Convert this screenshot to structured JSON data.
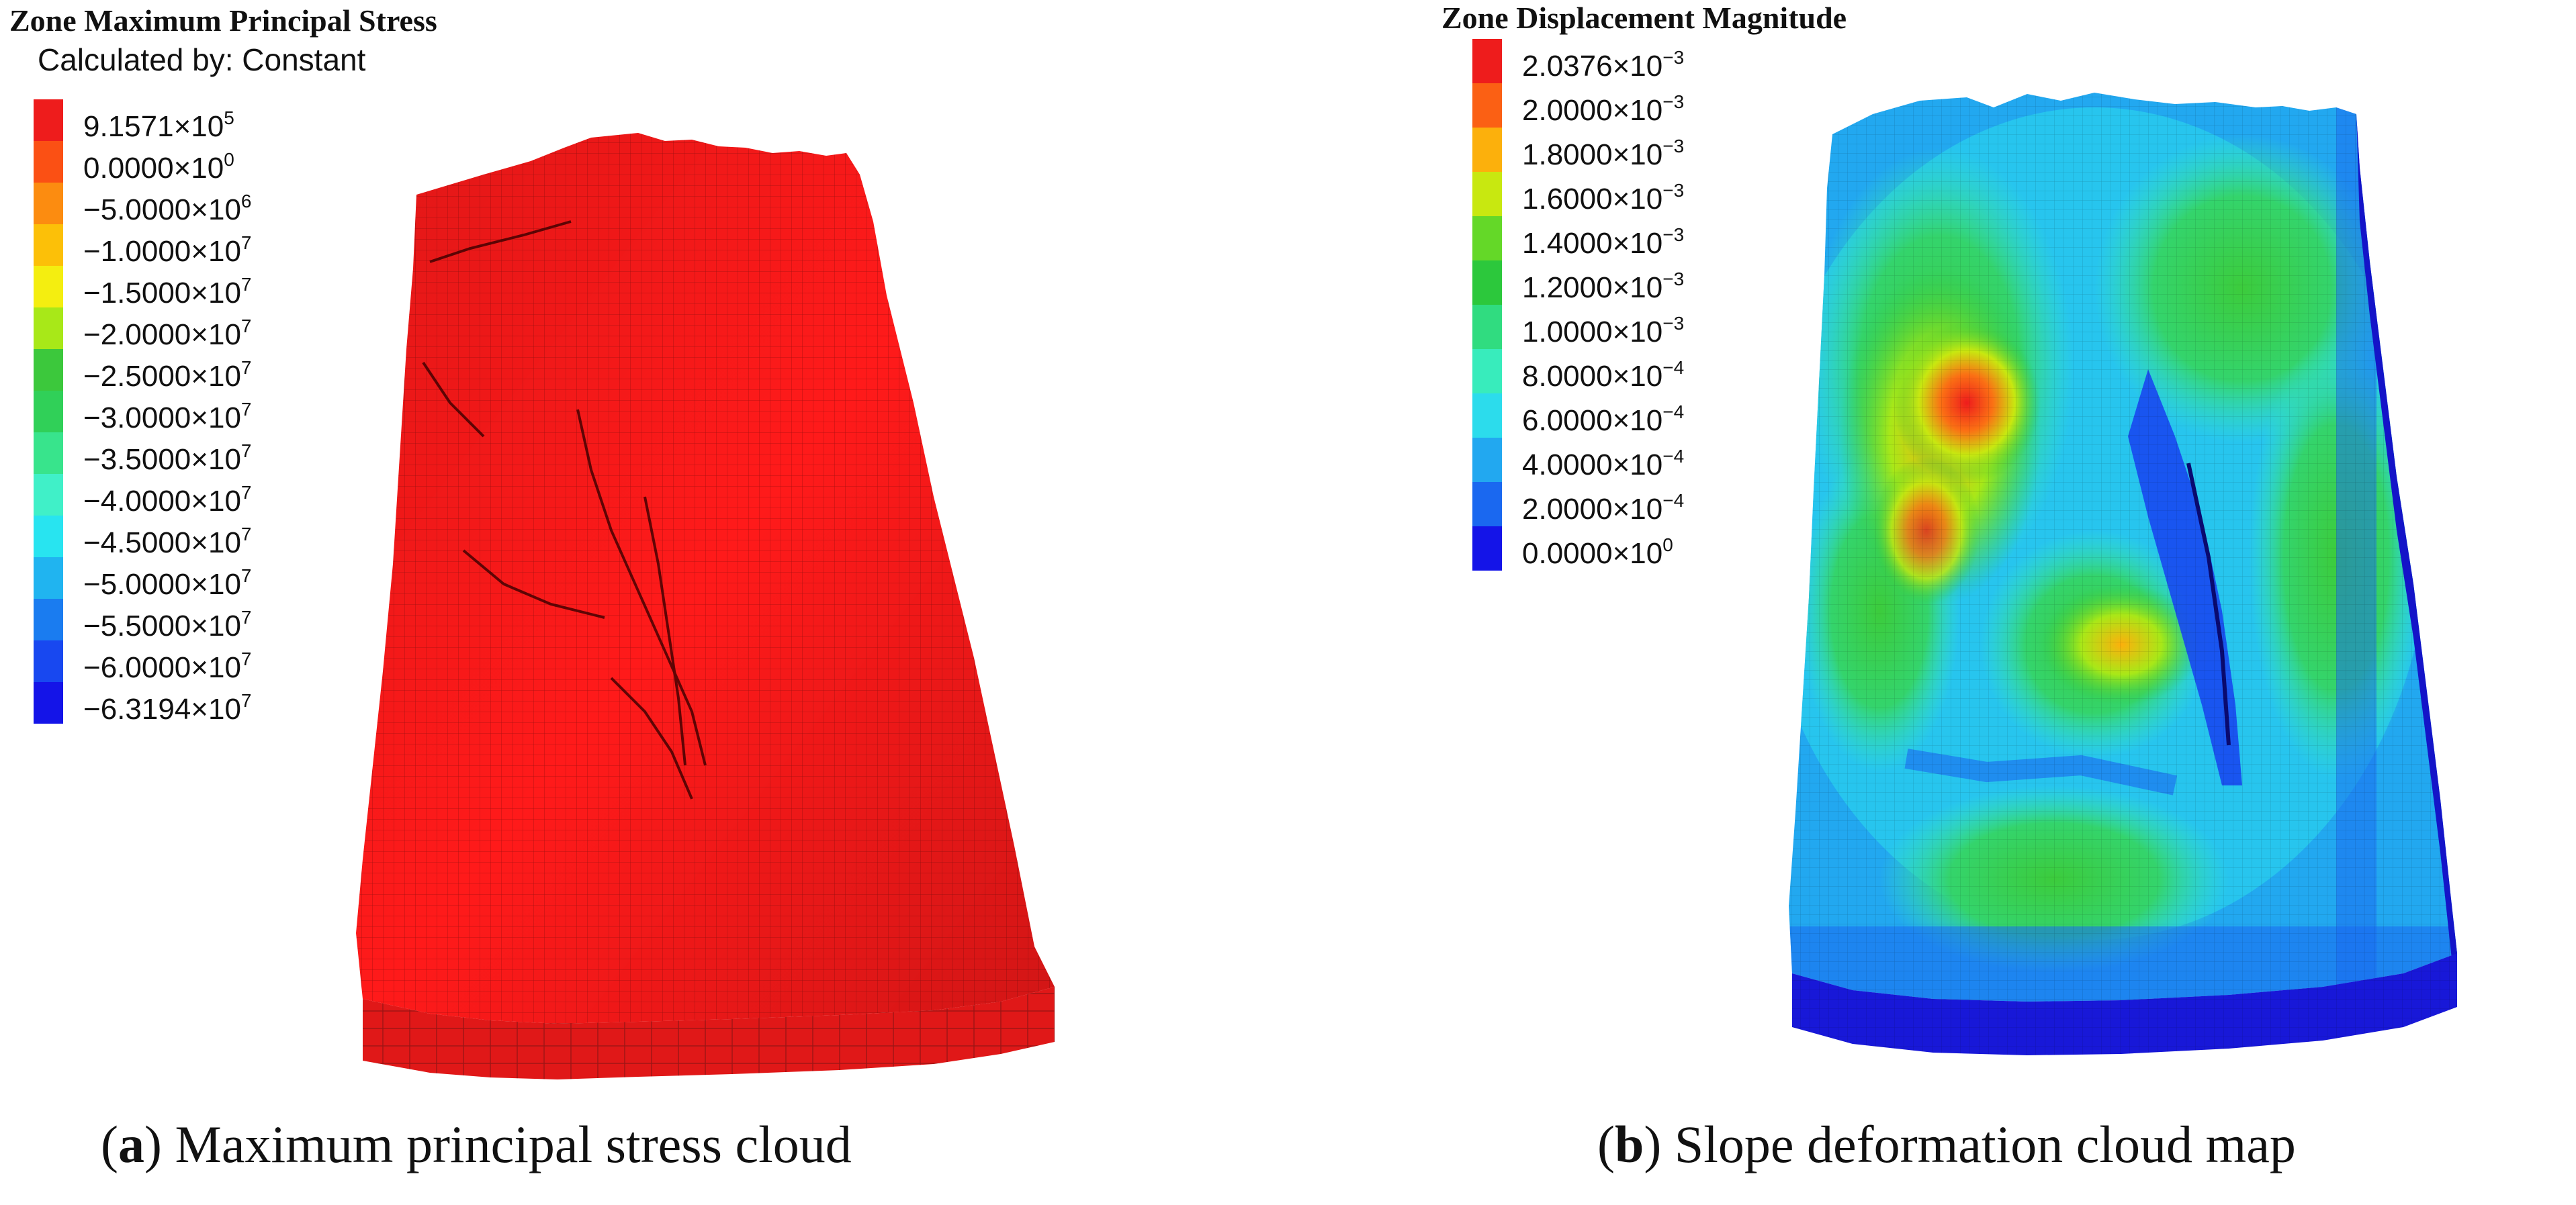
{
  "panel_a": {
    "legend_title": "Zone Maximum Principal Stress",
    "legend_subtitle": "Calculated by: Constant",
    "legend_items": [
      {
        "mantissa": "9.1571",
        "exp": "5",
        "color": "#ee1c1c"
      },
      {
        "mantissa": "0.0000",
        "exp": "0",
        "color": "#fb5014"
      },
      {
        "mantissa": "−5.0000",
        "exp": "6",
        "color": "#fc8c10"
      },
      {
        "mantissa": "−1.0000",
        "exp": "7",
        "color": "#fcc008"
      },
      {
        "mantissa": "−1.5000",
        "exp": "7",
        "color": "#f4ee10"
      },
      {
        "mantissa": "−2.0000",
        "exp": "7",
        "color": "#a8e818"
      },
      {
        "mantissa": "−2.5000",
        "exp": "7",
        "color": "#3cc83c"
      },
      {
        "mantissa": "−3.0000",
        "exp": "7",
        "color": "#30d058"
      },
      {
        "mantissa": "−3.5000",
        "exp": "7",
        "color": "#38e48c"
      },
      {
        "mantissa": "−4.0000",
        "exp": "7",
        "color": "#40f0c8"
      },
      {
        "mantissa": "−4.5000",
        "exp": "7",
        "color": "#28e4f0"
      },
      {
        "mantissa": "−5.0000",
        "exp": "7",
        "color": "#20b4f0"
      },
      {
        "mantissa": "−5.5000",
        "exp": "7",
        "color": "#1a7cf0"
      },
      {
        "mantissa": "−6.0000",
        "exp": "7",
        "color": "#1848f0"
      },
      {
        "mantissa": "−6.3194",
        "exp": "7",
        "color": "#1414e8"
      }
    ],
    "caption_letter": "a",
    "caption_text": "Maximum principal stress cloud",
    "model_color": "#ff1a1a"
  },
  "panel_b": {
    "legend_title": "Zone Displacement Magnitude",
    "legend_items": [
      {
        "mantissa": "2.0376",
        "exp": "−3",
        "color": "#ee1c1c"
      },
      {
        "mantissa": "2.0000",
        "exp": "−3",
        "color": "#fb6014"
      },
      {
        "mantissa": "1.8000",
        "exp": "−3",
        "color": "#fcb00c"
      },
      {
        "mantissa": "1.6000",
        "exp": "−3",
        "color": "#c8e810"
      },
      {
        "mantissa": "1.4000",
        "exp": "−3",
        "color": "#64d828"
      },
      {
        "mantissa": "1.2000",
        "exp": "−3",
        "color": "#2cc83c"
      },
      {
        "mantissa": "1.0000",
        "exp": "−3",
        "color": "#30dc80"
      },
      {
        "mantissa": "8.0000",
        "exp": "−4",
        "color": "#38ecbc"
      },
      {
        "mantissa": "6.0000",
        "exp": "−4",
        "color": "#2cdcec"
      },
      {
        "mantissa": "4.0000",
        "exp": "−4",
        "color": "#22a8f0"
      },
      {
        "mantissa": "2.0000",
        "exp": "−4",
        "color": "#1a68f0"
      },
      {
        "mantissa": "0.0000",
        "exp": "0",
        "color": "#1414e8"
      }
    ],
    "caption_letter": "b",
    "caption_text": "Slope deformation cloud map"
  }
}
